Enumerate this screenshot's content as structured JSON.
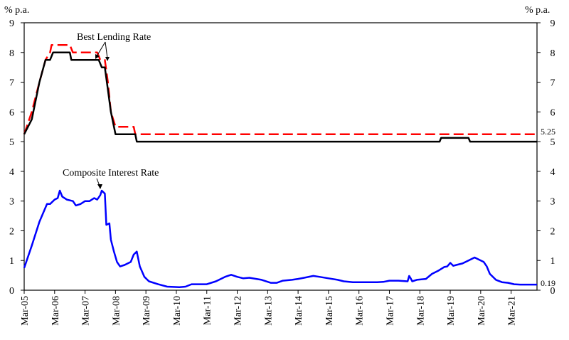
{
  "chart_data": {
    "type": "line",
    "y_unit_left": "% p.a.",
    "y_unit_right": "% p.a.",
    "ylim": [
      0,
      9
    ],
    "y_ticks": [
      "0",
      "1",
      "2",
      "3",
      "4",
      "5",
      "6",
      "7",
      "8",
      "9"
    ],
    "x_tick_labels": [
      "Mar-05",
      "Mar-06",
      "Mar-07",
      "Mar-08",
      "Mar-09",
      "Mar-10",
      "Mar-11",
      "Mar-12",
      "Mar-13",
      "Mar-14",
      "Mar-15",
      "Mar-16",
      "Mar-17",
      "Mar-18",
      "Mar-19",
      "Mar-20",
      "Mar-21"
    ],
    "x_range": [
      2005.0,
      2021.85
    ],
    "grid": false,
    "annotations": {
      "best_lending_rate": "Best Lending Rate",
      "composite_interest_rate": "Composite Interest Rate",
      "end_value_red": "5.25",
      "end_value_blue": "0.19"
    },
    "series": [
      {
        "name": "Best Lending Rate",
        "color": "#ff0000",
        "style": "dashed",
        "points": [
          [
            2005.0,
            5.25
          ],
          [
            2005.25,
            6.0
          ],
          [
            2005.5,
            7.0
          ],
          [
            2005.7,
            7.75
          ],
          [
            2005.85,
            8.0
          ],
          [
            2005.9,
            8.25
          ],
          [
            2006.5,
            8.25
          ],
          [
            2006.6,
            8.0
          ],
          [
            2007.4,
            8.0
          ],
          [
            2007.5,
            7.75
          ],
          [
            2007.65,
            7.75
          ],
          [
            2007.75,
            7.0
          ],
          [
            2007.85,
            6.0
          ],
          [
            2008.0,
            5.5
          ],
          [
            2008.6,
            5.5
          ],
          [
            2008.65,
            5.25
          ],
          [
            2021.85,
            5.25
          ]
        ]
      },
      {
        "name": "Best Lending Rate",
        "color": "#000000",
        "style": "solid",
        "points": [
          [
            2005.0,
            5.25
          ],
          [
            2005.25,
            5.75
          ],
          [
            2005.5,
            7.0
          ],
          [
            2005.7,
            7.75
          ],
          [
            2005.85,
            7.75
          ],
          [
            2005.95,
            8.0
          ],
          [
            2006.5,
            8.0
          ],
          [
            2006.55,
            7.75
          ],
          [
            2007.45,
            7.75
          ],
          [
            2007.55,
            7.5
          ],
          [
            2007.65,
            7.5
          ],
          [
            2007.75,
            6.75
          ],
          [
            2007.85,
            6.0
          ],
          [
            2008.0,
            5.25
          ],
          [
            2008.4,
            5.25
          ],
          [
            2008.65,
            5.25
          ],
          [
            2008.7,
            5.0
          ],
          [
            2018.65,
            5.0
          ],
          [
            2018.7,
            5.125
          ],
          [
            2019.6,
            5.125
          ],
          [
            2019.65,
            5.0
          ],
          [
            2021.85,
            5.0
          ]
        ]
      },
      {
        "name": "Composite Interest Rate",
        "color": "#0000ff",
        "style": "solid",
        "points": [
          [
            2005.0,
            0.75
          ],
          [
            2005.25,
            1.5
          ],
          [
            2005.5,
            2.3
          ],
          [
            2005.75,
            2.9
          ],
          [
            2005.85,
            2.9
          ],
          [
            2006.0,
            3.05
          ],
          [
            2006.1,
            3.1
          ],
          [
            2006.17,
            3.35
          ],
          [
            2006.25,
            3.15
          ],
          [
            2006.4,
            3.05
          ],
          [
            2006.6,
            3.0
          ],
          [
            2006.7,
            2.85
          ],
          [
            2006.85,
            2.9
          ],
          [
            2007.0,
            3.0
          ],
          [
            2007.15,
            3.0
          ],
          [
            2007.3,
            3.1
          ],
          [
            2007.4,
            3.05
          ],
          [
            2007.5,
            3.2
          ],
          [
            2007.55,
            3.35
          ],
          [
            2007.65,
            3.25
          ],
          [
            2007.7,
            2.2
          ],
          [
            2007.8,
            2.25
          ],
          [
            2007.85,
            1.7
          ],
          [
            2007.95,
            1.3
          ],
          [
            2008.05,
            0.95
          ],
          [
            2008.15,
            0.8
          ],
          [
            2008.3,
            0.85
          ],
          [
            2008.5,
            0.95
          ],
          [
            2008.6,
            1.2
          ],
          [
            2008.7,
            1.3
          ],
          [
            2008.8,
            0.8
          ],
          [
            2008.95,
            0.45
          ],
          [
            2009.1,
            0.3
          ],
          [
            2009.4,
            0.2
          ],
          [
            2009.7,
            0.12
          ],
          [
            2010.1,
            0.1
          ],
          [
            2010.3,
            0.12
          ],
          [
            2010.5,
            0.2
          ],
          [
            2011.0,
            0.2
          ],
          [
            2011.3,
            0.3
          ],
          [
            2011.6,
            0.45
          ],
          [
            2011.8,
            0.52
          ],
          [
            2012.0,
            0.45
          ],
          [
            2012.2,
            0.4
          ],
          [
            2012.4,
            0.42
          ],
          [
            2012.8,
            0.35
          ],
          [
            2013.1,
            0.25
          ],
          [
            2013.3,
            0.25
          ],
          [
            2013.5,
            0.32
          ],
          [
            2013.8,
            0.35
          ],
          [
            2014.0,
            0.38
          ],
          [
            2014.2,
            0.42
          ],
          [
            2014.5,
            0.48
          ],
          [
            2014.7,
            0.45
          ],
          [
            2015.0,
            0.4
          ],
          [
            2015.3,
            0.35
          ],
          [
            2015.5,
            0.3
          ],
          [
            2015.8,
            0.27
          ],
          [
            2016.2,
            0.27
          ],
          [
            2016.6,
            0.27
          ],
          [
            2016.8,
            0.28
          ],
          [
            2017.0,
            0.32
          ],
          [
            2017.3,
            0.32
          ],
          [
            2017.6,
            0.3
          ],
          [
            2017.65,
            0.48
          ],
          [
            2017.7,
            0.4
          ],
          [
            2017.75,
            0.3
          ],
          [
            2017.9,
            0.35
          ],
          [
            2018.2,
            0.38
          ],
          [
            2018.4,
            0.55
          ],
          [
            2018.6,
            0.65
          ],
          [
            2018.8,
            0.78
          ],
          [
            2018.9,
            0.8
          ],
          [
            2019.0,
            0.92
          ],
          [
            2019.1,
            0.82
          ],
          [
            2019.2,
            0.85
          ],
          [
            2019.4,
            0.9
          ],
          [
            2019.6,
            1.0
          ],
          [
            2019.8,
            1.1
          ],
          [
            2019.9,
            1.05
          ],
          [
            2020.1,
            0.95
          ],
          [
            2020.2,
            0.8
          ],
          [
            2020.3,
            0.55
          ],
          [
            2020.5,
            0.35
          ],
          [
            2020.7,
            0.27
          ],
          [
            2020.9,
            0.25
          ],
          [
            2021.1,
            0.2
          ],
          [
            2021.3,
            0.19
          ],
          [
            2021.5,
            0.19
          ],
          [
            2021.85,
            0.19
          ]
        ]
      }
    ]
  }
}
